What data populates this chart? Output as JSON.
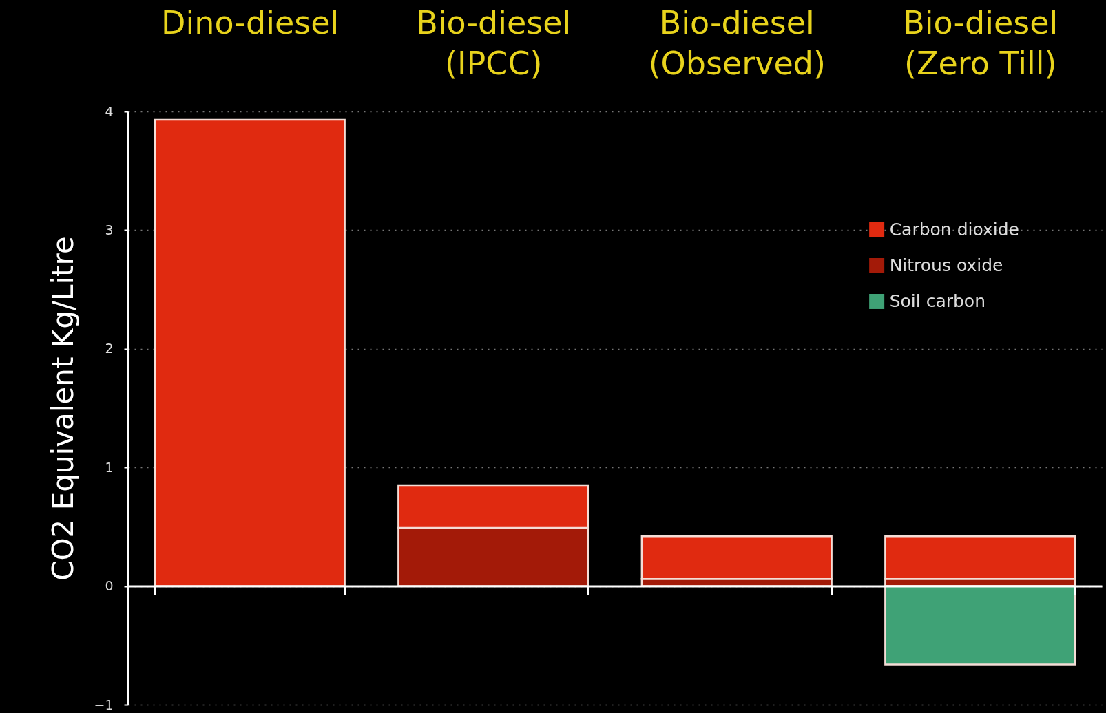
{
  "chart_data": {
    "type": "bar",
    "categories": [
      "Dino-diesel",
      "Bio-diesel (IPCC)",
      "Bio-diesel (Observed)",
      "Bio-diesel (Zero Till)"
    ],
    "ylabel": "CO2 Equivalent Kg/Litre",
    "stacked": true,
    "series": [
      {
        "name": "Nitrous oxide",
        "color": "#a31a08",
        "values": [
          null,
          0.49,
          0.06,
          0.06
        ]
      },
      {
        "name": "Carbon dioxide",
        "color": "#e02a10",
        "values": [
          3.93,
          0.36,
          0.36,
          0.36
        ]
      },
      {
        "name": "Soil carbon",
        "color": "#3fa276",
        "values": [
          null,
          null,
          null,
          -0.66
        ]
      }
    ],
    "ylim": [
      -1,
      4
    ],
    "yticks": [
      -1,
      0,
      1,
      2,
      3,
      4
    ],
    "grid": "y",
    "legend": "top right"
  }
}
